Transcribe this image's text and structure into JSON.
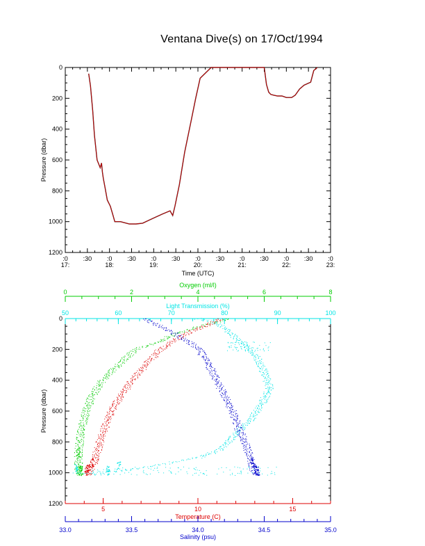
{
  "title": "Ventana Dive(s) on 17/Oct/1994",
  "colors": {
    "axis": "#000000",
    "dive_trace": "#cc0000",
    "dive_trace_dark": "#000000",
    "oxygen": "#00cc00",
    "transmission": "#00e5e5",
    "temperature": "#dd0000",
    "salinity": "#0000cc"
  },
  "chart_data": [
    {
      "type": "line",
      "title": "Ventana Dive(s) on 17/Oct/1994",
      "xlabel": "Time (UTC)",
      "ylabel": "Pressure (dbar)",
      "x_unit": "hours UTC",
      "xlim": [
        17.0,
        23.0
      ],
      "ylim": [
        1200,
        0
      ],
      "y_inverted": true,
      "x_ticks": [
        {
          "value": 17.0,
          "top": ":0",
          "bottom": "17:"
        },
        {
          "value": 17.5,
          "top": ":30",
          "bottom": ""
        },
        {
          "value": 18.0,
          "top": ":0",
          "bottom": "18:"
        },
        {
          "value": 18.5,
          "top": ":30",
          "bottom": ""
        },
        {
          "value": 19.0,
          "top": ":0",
          "bottom": "19:"
        },
        {
          "value": 19.5,
          "top": ":30",
          "bottom": ""
        },
        {
          "value": 20.0,
          "top": ":0",
          "bottom": "20:"
        },
        {
          "value": 20.5,
          "top": ":30",
          "bottom": ""
        },
        {
          "value": 21.0,
          "top": ":0",
          "bottom": "21:"
        },
        {
          "value": 21.5,
          "top": ":30",
          "bottom": ""
        },
        {
          "value": 22.0,
          "top": ":0",
          "bottom": "22:"
        },
        {
          "value": 22.5,
          "top": ":30",
          "bottom": ""
        },
        {
          "value": 23.0,
          "top": ":0",
          "bottom": "23:"
        }
      ],
      "y_ticks": [
        "0",
        "200",
        "400",
        "600",
        "800",
        "1000",
        "1200"
      ],
      "series": [
        {
          "x": [
            17.53,
            17.57,
            17.62,
            17.66,
            17.72,
            17.79,
            17.82,
            17.84,
            17.86,
            17.9,
            17.95,
            18.02,
            18.08,
            18.12,
            18.25,
            18.45,
            18.6,
            18.75,
            18.9,
            19.05,
            19.2,
            19.37,
            19.43,
            19.48,
            19.58,
            19.7,
            19.85,
            19.95,
            20.05,
            20.3,
            20.5,
            20.8,
            21.2,
            21.5,
            21.55,
            21.6,
            21.65,
            21.72,
            21.8,
            21.9,
            22.0,
            22.12,
            22.2,
            22.3,
            22.4,
            22.55,
            22.62,
            22.7
          ],
          "y": [
            40,
            120,
            280,
            440,
            600,
            650,
            620,
            680,
            720,
            780,
            860,
            900,
            960,
            1000,
            1000,
            1015,
            1015,
            1010,
            990,
            970,
            950,
            930,
            960,
            900,
            760,
            550,
            340,
            200,
            70,
            0,
            0,
            0,
            0,
            0,
            110,
            160,
            175,
            180,
            185,
            185,
            195,
            195,
            180,
            140,
            115,
            95,
            20,
            0
          ]
        }
      ]
    },
    {
      "type": "scatter",
      "ylabel": "Pressure (dbar)",
      "ylim": [
        1200,
        0
      ],
      "y_inverted": true,
      "y_ticks": [
        "0",
        "200",
        "400",
        "600",
        "800",
        "1000",
        "1200"
      ],
      "axes": [
        {
          "name": "oxygen",
          "label": "Oxygen (ml/l)",
          "lim": [
            0,
            8
          ],
          "ticks": [
            "0",
            "2",
            "4",
            "6",
            "8"
          ],
          "position": "top-outer"
        },
        {
          "name": "transmission",
          "label": "Light Transmission (%)",
          "lim": [
            50,
            100
          ],
          "ticks": [
            "50",
            "60",
            "70",
            "80",
            "90",
            "100"
          ],
          "position": "top-inner"
        },
        {
          "name": "temperature",
          "label": "Temperature (C)",
          "lim": [
            3,
            17
          ],
          "ticks": [
            "5",
            "10",
            "15"
          ],
          "position": "bottom-inner"
        },
        {
          "name": "salinity",
          "label": "Salinity (psu)",
          "lim": [
            33.0,
            35.0
          ],
          "ticks": [
            "33.0",
            "33.5",
            "34.0",
            "34.5",
            "35.0"
          ],
          "position": "bottom-outer"
        }
      ],
      "series": [
        {
          "axis": "oxygen",
          "profile": [
            [
              4.9,
              0
            ],
            [
              4.6,
              20
            ],
            [
              4.0,
              50
            ],
            [
              3.3,
              100
            ],
            [
              2.8,
              150
            ],
            [
              2.1,
              200
            ],
            [
              1.6,
              300
            ],
            [
              1.1,
              400
            ],
            [
              0.8,
              500
            ],
            [
              0.62,
              600
            ],
            [
              0.5,
              700
            ],
            [
              0.42,
              800
            ],
            [
              0.38,
              900
            ],
            [
              0.4,
              1000
            ],
            [
              0.45,
              1015
            ]
          ]
        },
        {
          "axis": "transmission",
          "profile": [
            [
              75,
              0
            ],
            [
              78,
              20
            ],
            [
              80,
              60
            ],
            [
              82,
              120
            ],
            [
              84,
              180
            ],
            [
              86,
              250
            ],
            [
              87.5,
              350
            ],
            [
              88.5,
              450
            ],
            [
              87,
              550
            ],
            [
              85,
              650
            ],
            [
              82,
              750
            ],
            [
              79,
              850
            ],
            [
              75,
              900
            ],
            [
              67,
              950
            ],
            [
              60,
              985
            ],
            [
              52,
              1000
            ],
            [
              58,
              1012
            ]
          ]
        },
        {
          "axis": "temperature",
          "profile": [
            [
              11.2,
              0
            ],
            [
              10.3,
              50
            ],
            [
              9.3,
              100
            ],
            [
              8.6,
              150
            ],
            [
              8.0,
              200
            ],
            [
              7.2,
              300
            ],
            [
              6.5,
              400
            ],
            [
              5.9,
              500
            ],
            [
              5.4,
              600
            ],
            [
              5.1,
              700
            ],
            [
              4.8,
              800
            ],
            [
              4.6,
              900
            ],
            [
              4.4,
              960
            ],
            [
              4.2,
              1000
            ],
            [
              4.1,
              1015
            ]
          ]
        },
        {
          "axis": "salinity",
          "profile": [
            [
              33.6,
              0
            ],
            [
              33.72,
              50
            ],
            [
              33.83,
              100
            ],
            [
              33.93,
              150
            ],
            [
              34.01,
              200
            ],
            [
              34.08,
              300
            ],
            [
              34.14,
              400
            ],
            [
              34.2,
              500
            ],
            [
              34.26,
              600
            ],
            [
              34.3,
              700
            ],
            [
              34.35,
              800
            ],
            [
              34.39,
              900
            ],
            [
              34.41,
              960
            ],
            [
              34.43,
              1000
            ],
            [
              34.44,
              1015
            ]
          ]
        }
      ]
    }
  ]
}
